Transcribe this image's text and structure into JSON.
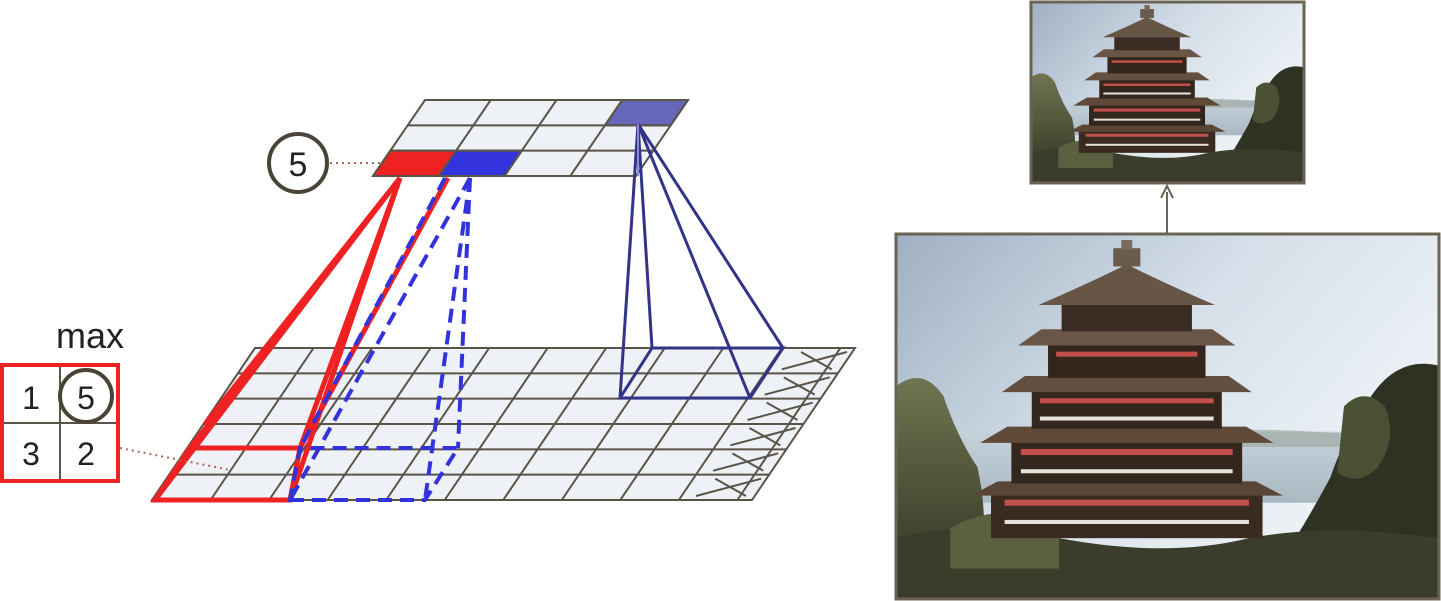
{
  "diagram": {
    "max_label": "max",
    "pool_window": [
      "1",
      "5",
      "3",
      "2"
    ],
    "output_value": "5"
  },
  "colors": {
    "grid_line": "#5a5448",
    "cell_fill": "#eef1f5",
    "red": "#ee2222",
    "blue": "#3333dd",
    "purple": "#6666bb",
    "dark_blue": "#33338a",
    "photo_frame": "#6b6455",
    "dotted_leader": "#aa6655"
  },
  "images": {
    "small_photo": "pagoda-photo",
    "large_photo": "pagoda-photo"
  }
}
